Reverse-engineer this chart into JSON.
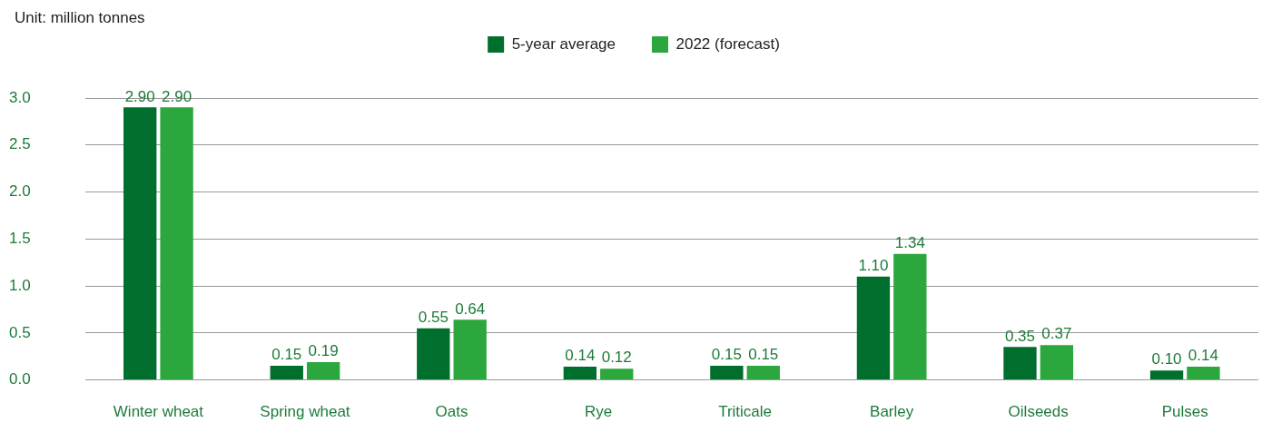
{
  "chart_data": {
    "type": "bar",
    "ylabel": "Unit: million tonnes",
    "categories": [
      "Winter wheat",
      "Spring wheat",
      "Oats",
      "Rye",
      "Triticale",
      "Barley",
      "Oilseeds",
      "Pulses"
    ],
    "series": [
      {
        "name": "5-year average",
        "color": "#006f2e",
        "values": [
          2.9,
          0.15,
          0.55,
          0.14,
          0.15,
          1.1,
          0.35,
          0.1
        ],
        "value_labels": [
          "2.90",
          "0.15",
          "0.55",
          "0.14",
          "0.15",
          "1.10",
          "0.35",
          "0.10"
        ]
      },
      {
        "name": "2022 (forecast)",
        "color": "#2ca73d",
        "values": [
          2.9,
          0.19,
          0.64,
          0.12,
          0.15,
          1.34,
          0.37,
          0.14
        ],
        "value_labels": [
          "2.90",
          "0.19",
          "0.64",
          "0.12",
          "0.15",
          "1.34",
          "0.37",
          "0.14"
        ]
      }
    ],
    "ylim": [
      0,
      3
    ],
    "yticks": [
      {
        "value": 0,
        "label": "0.0"
      },
      {
        "value": 0.5,
        "label": "0.5"
      },
      {
        "value": 1,
        "label": "1.0"
      },
      {
        "value": 1.5,
        "label": "1.5"
      },
      {
        "value": 2,
        "label": "2.0"
      },
      {
        "value": 2.5,
        "label": "2.5"
      },
      {
        "value": 3,
        "label": "3.0"
      }
    ],
    "grid": "y",
    "legend": "top"
  }
}
